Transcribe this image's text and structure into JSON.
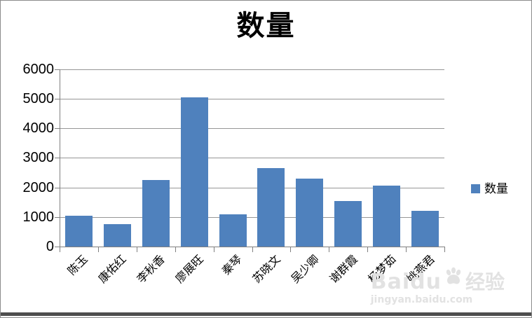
{
  "chart": {
    "title": "数量",
    "legend_label": "数量",
    "colors": {
      "bar": "#4F81BD",
      "gridline": "#969696",
      "axis": "#808080",
      "watermark": "#e2e2e2"
    }
  },
  "watermark": {
    "brand": "Baidu",
    "brand_suffix": "经验",
    "url": "jingyan.baidu.com",
    "paw_icon": "baidu-paw-icon"
  },
  "chart_data": {
    "type": "bar",
    "title": "数量",
    "categories": [
      "陈玉",
      "康佑红",
      "李秋香",
      "廖展旺",
      "秦琴",
      "苏晓文",
      "吴少卿",
      "谢群霞",
      "杨梦茹",
      "姚燕君"
    ],
    "values": [
      1050,
      750,
      2250,
      5050,
      1100,
      2650,
      2300,
      1550,
      2050,
      1200
    ],
    "series_name": "数量",
    "xlabel": "",
    "ylabel": "",
    "ylim": [
      0,
      6000
    ],
    "ytick_interval": 1000,
    "yticks": [
      "0",
      "1000",
      "2000",
      "3000",
      "4000",
      "5000",
      "6000"
    ],
    "grid": true,
    "legend": [
      "数量"
    ],
    "legend_position": "right",
    "x_label_rotation_deg": 45,
    "bar_color": "#4F81BD"
  }
}
